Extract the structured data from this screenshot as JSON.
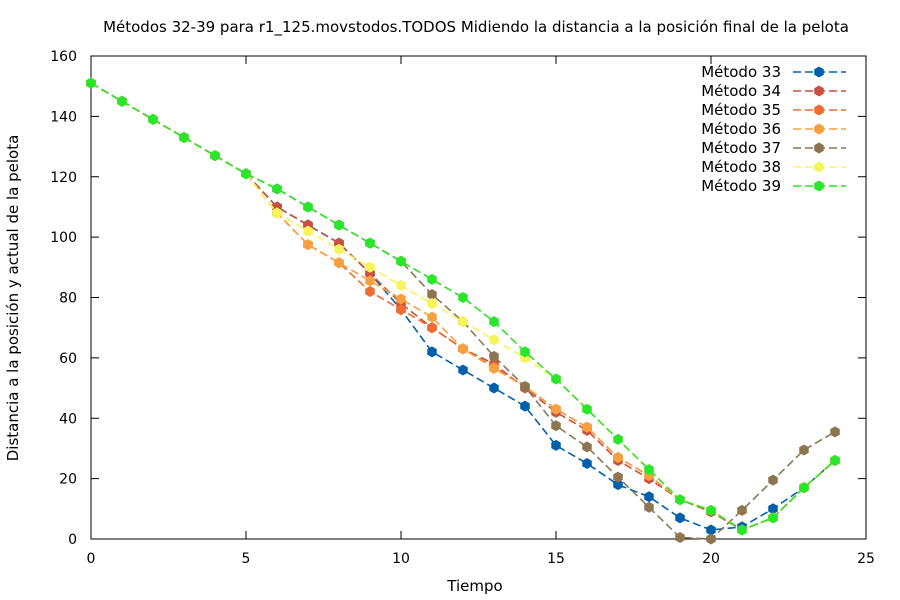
{
  "chart_data": {
    "type": "line",
    "title": "Métodos 32-39 para r1_125.movstodos.TODOS Midiendo la distancia a la posición final de la pelota",
    "xlabel": "Tiempo",
    "ylabel": "Distancia a la posición y actual de la pelota",
    "xlim": [
      0,
      25
    ],
    "ylim": [
      0,
      160
    ],
    "xticks": [
      0,
      5,
      10,
      15,
      20,
      25
    ],
    "yticks": [
      0,
      20,
      40,
      60,
      80,
      100,
      120,
      140,
      160
    ],
    "grid": false,
    "legend_position": "top-right",
    "marker": "hexagon",
    "line_style": "dashed",
    "series": [
      {
        "name": "Método 33",
        "color": "#0060ad",
        "x": [
          0,
          1,
          2,
          3,
          4,
          5,
          6,
          7,
          8,
          9,
          10,
          11,
          12,
          13,
          14,
          15,
          16,
          17,
          18,
          19,
          20,
          21,
          22,
          23,
          24
        ],
        "y": [
          151,
          145,
          139,
          133,
          127,
          121,
          110,
          104,
          98,
          88,
          76,
          62,
          56,
          50,
          44,
          31,
          25,
          18,
          14,
          7,
          3,
          4,
          10,
          17,
          26
        ]
      },
      {
        "name": "Método 34",
        "color": "#c8503c",
        "x": [
          0,
          1,
          2,
          3,
          4,
          5,
          6,
          7,
          8,
          9,
          10,
          11,
          12,
          13,
          14,
          15,
          16,
          17,
          18,
          19,
          20,
          21,
          22,
          23,
          24
        ],
        "y": [
          151,
          145,
          139,
          133,
          127,
          121,
          110,
          104,
          98,
          88,
          78,
          70,
          63,
          58,
          50,
          42,
          36,
          26,
          20,
          13,
          9,
          3,
          7,
          17,
          26
        ]
      },
      {
        "name": "Método 35",
        "color": "#f06c32",
        "x": [
          0,
          1,
          2,
          3,
          4,
          5,
          6,
          7,
          8,
          9,
          10,
          11,
          12,
          13,
          14,
          15,
          16,
          17,
          18,
          19,
          20,
          21,
          22,
          23,
          24
        ],
        "y": [
          151,
          145,
          139,
          133,
          127,
          121,
          108,
          97.5,
          91.5,
          82,
          76,
          70,
          63,
          57,
          50.5,
          43,
          37,
          27,
          21,
          13,
          9.5,
          3,
          7,
          17,
          26
        ]
      },
      {
        "name": "Método 36",
        "color": "#f8a040",
        "x": [
          0,
          1,
          2,
          3,
          4,
          5,
          6,
          7,
          8,
          9,
          10,
          11,
          12,
          13,
          14,
          15,
          16,
          17,
          18,
          19,
          20,
          21,
          22,
          23,
          24
        ],
        "y": [
          151,
          145,
          139,
          133,
          127,
          121,
          108,
          97.5,
          91.5,
          85.5,
          79.5,
          73.5,
          63,
          56.5,
          50.5,
          43,
          37,
          27,
          21,
          13,
          9.5,
          3,
          7,
          17,
          26
        ]
      },
      {
        "name": "Método 37",
        "color": "#8c7650",
        "x": [
          0,
          1,
          2,
          3,
          4,
          5,
          6,
          7,
          8,
          9,
          10,
          11,
          12,
          13,
          14,
          15,
          16,
          17,
          18,
          19,
          20,
          21,
          22,
          23,
          24
        ],
        "y": [
          151,
          145,
          139,
          133,
          127,
          121,
          116,
          110,
          104,
          98,
          92,
          81,
          72,
          60.5,
          50.5,
          37.5,
          30.5,
          20.5,
          10.5,
          0.5,
          0,
          9.5,
          19.5,
          29.5,
          35.5
        ]
      },
      {
        "name": "Método 38",
        "color": "#f5f55a",
        "x": [
          0,
          1,
          2,
          3,
          4,
          5,
          6,
          7,
          8,
          9,
          10,
          11,
          12,
          13,
          14,
          15,
          16,
          17,
          18,
          19,
          20,
          21,
          22,
          23,
          24
        ],
        "y": [
          151,
          145,
          139,
          133,
          127,
          121,
          108,
          102,
          96,
          90,
          84,
          78,
          72,
          66,
          60,
          53,
          43,
          33,
          23,
          13,
          9.5,
          3,
          7,
          17,
          26
        ]
      },
      {
        "name": "Método 39",
        "color": "#28e628",
        "x": [
          0,
          1,
          2,
          3,
          4,
          5,
          6,
          7,
          8,
          9,
          10,
          11,
          12,
          13,
          14,
          15,
          16,
          17,
          18,
          19,
          20,
          21,
          22,
          23,
          24
        ],
        "y": [
          151,
          145,
          139,
          133,
          127,
          121,
          116,
          110,
          104,
          98,
          92,
          86,
          80,
          72,
          62,
          53,
          43,
          33,
          23,
          13,
          9.5,
          3,
          7,
          17,
          26
        ]
      }
    ]
  }
}
